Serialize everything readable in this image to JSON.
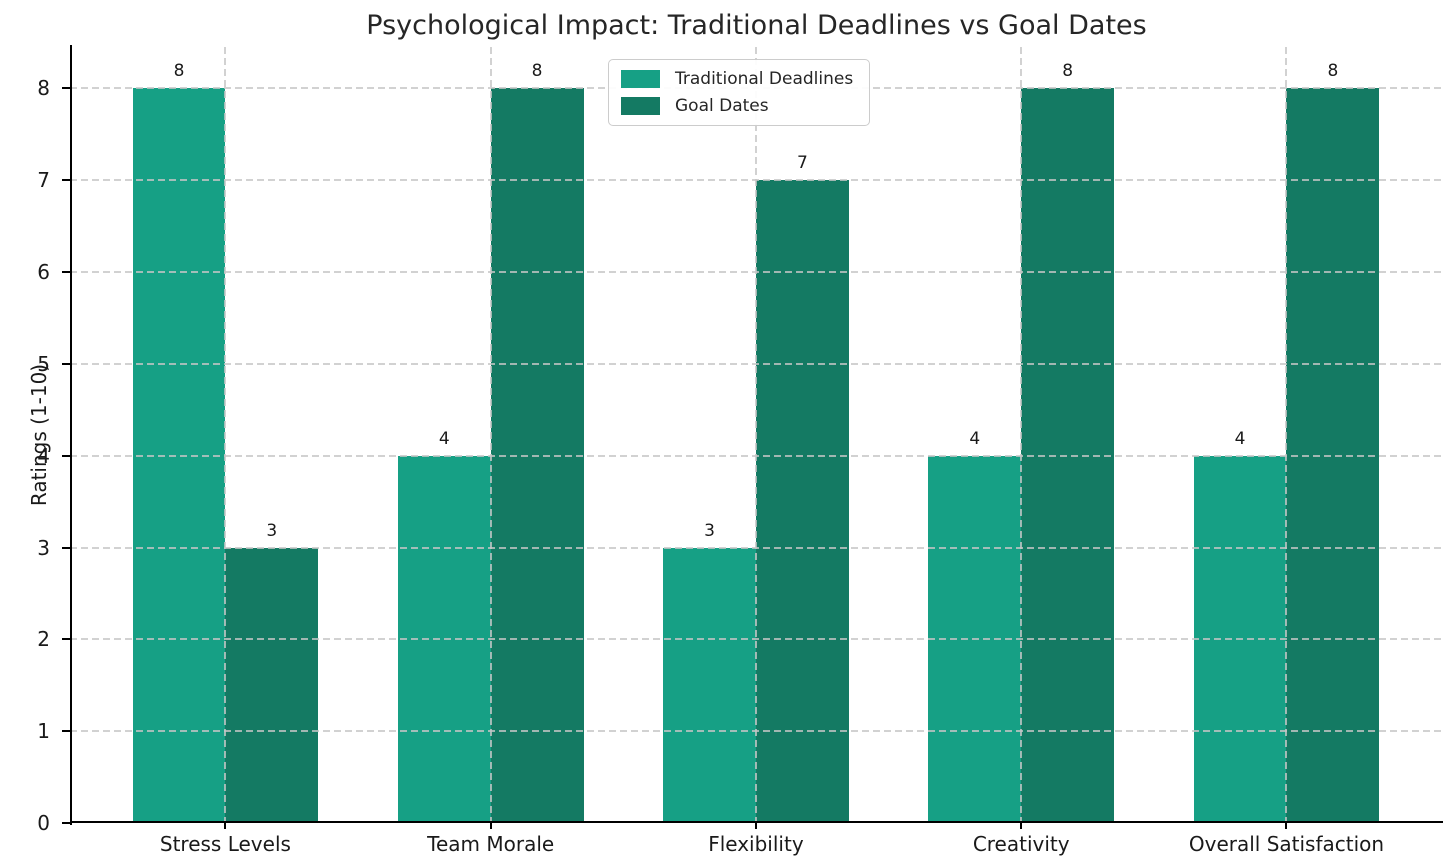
{
  "title": "Psychological Impact: Traditional Deadlines vs Goal Dates",
  "chart_data": {
    "type": "bar",
    "title": "Psychological Impact: Traditional Deadlines vs Goal Dates",
    "xlabel": "",
    "ylabel": "Ratings (1-10)",
    "categories": [
      "Stress Levels",
      "Team Morale",
      "Flexibility",
      "Creativity",
      "Overall Satisfaction"
    ],
    "series": [
      {
        "name": "Traditional Deadlines",
        "color": "#16a085",
        "values": [
          8,
          4,
          3,
          4,
          4
        ]
      },
      {
        "name": "Goal Dates",
        "color": "#147a63",
        "values": [
          3,
          8,
          7,
          8,
          8
        ]
      }
    ],
    "bar_value_labels": [
      {
        "series": "Traditional Deadlines",
        "labels": [
          "8",
          "4",
          "3",
          "4",
          "4"
        ]
      },
      {
        "series": "Goal Dates",
        "labels": [
          "3",
          "8",
          "7",
          "8",
          "8"
        ]
      }
    ],
    "yticks": [
      0,
      1,
      2,
      3,
      4,
      5,
      6,
      7,
      8
    ],
    "ylim": [
      0,
      8.45
    ],
    "grid": "dashed horizontal and vertical gridlines, drawn over bars",
    "legend_position": "upper center",
    "legend_entries": [
      "Traditional Deadlines",
      "Goal Dates"
    ]
  },
  "colors": {
    "traditional_deadlines": "#16a085",
    "goal_dates": "#147a63",
    "gridline": "#c6c6c6",
    "axis": "#000000",
    "text": "#1a1a1a",
    "background": "#ffffff"
  }
}
